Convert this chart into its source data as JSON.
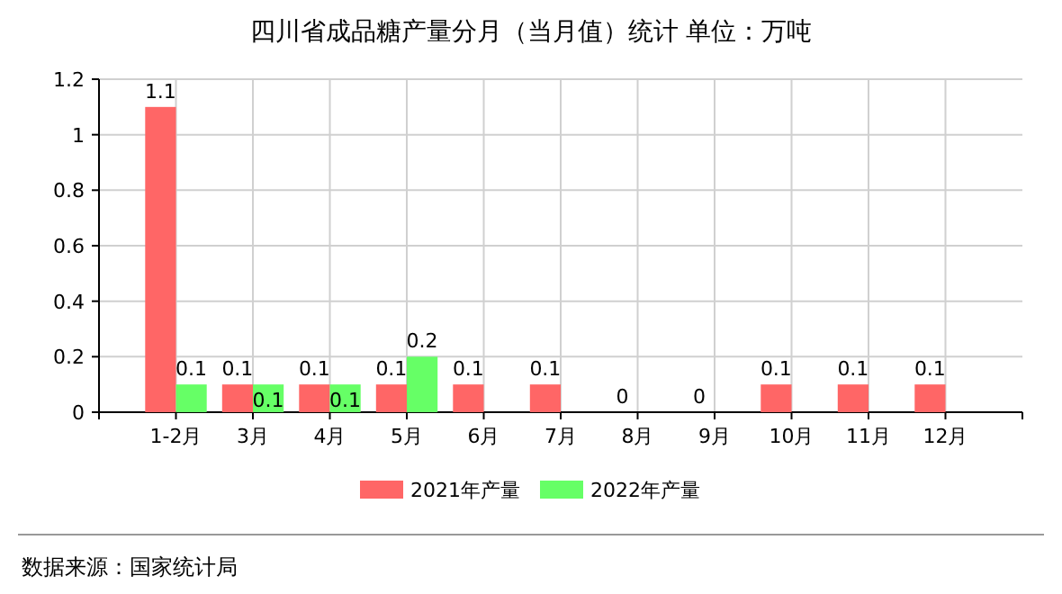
{
  "chart_data": {
    "type": "bar",
    "title": "四川省成品糖产量分月（当月值）统计  单位：万吨",
    "categories": [
      "1-2月",
      "3月",
      "4月",
      "5月",
      "6月",
      "7月",
      "8月",
      "9月",
      "10月",
      "11月",
      "12月"
    ],
    "series": [
      {
        "name": "2021年产量",
        "color": "#ff6666",
        "values": [
          1.1,
          0.1,
          0.1,
          0.1,
          0.1,
          0.1,
          0,
          0,
          0.1,
          0.1,
          0.1
        ]
      },
      {
        "name": "2022年产量",
        "color": "#66ff66",
        "values": [
          0.1,
          0.1,
          0.1,
          0.2,
          null,
          null,
          null,
          null,
          null,
          null,
          null
        ]
      }
    ],
    "ylim": [
      0,
      1.2
    ],
    "yticks": [
      0,
      0.2,
      0.4,
      0.6,
      0.8,
      1,
      1.2
    ],
    "grid": true,
    "legend": "bottom",
    "data_labels": true,
    "annotations": [
      "数据来源：国家统计局"
    ]
  }
}
